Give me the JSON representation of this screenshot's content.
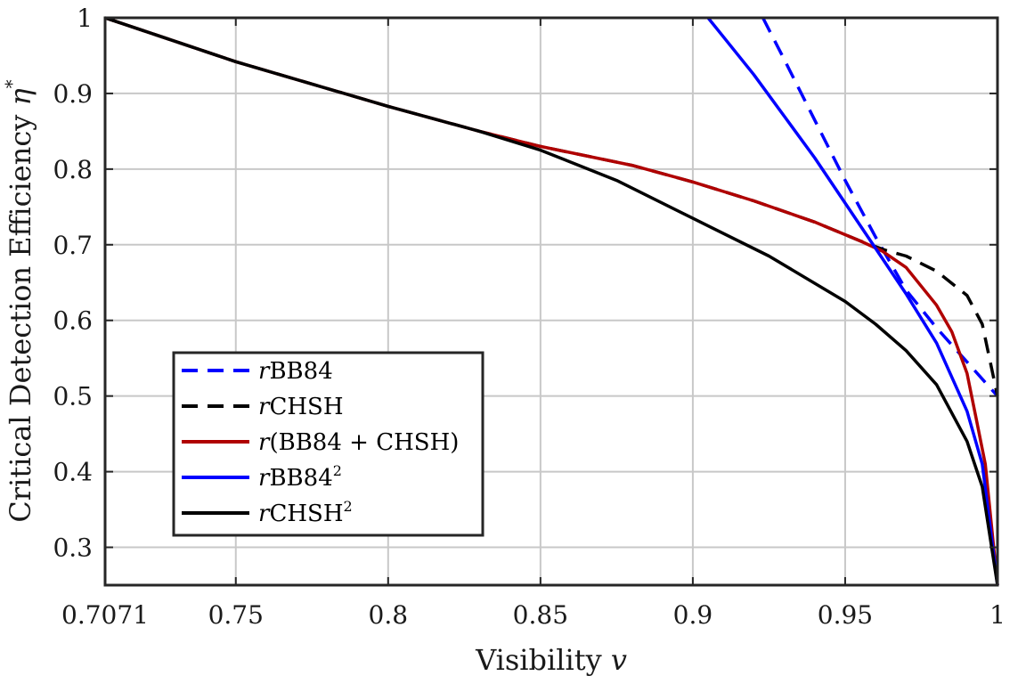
{
  "chart_data": {
    "type": "line",
    "xlabel_main": "Visibility ",
    "xlabel_var": "v",
    "ylabel_main": "Critical Detection Efficiency ",
    "ylabel_var": "η",
    "ylabel_sup": "*",
    "xlim": [
      0.7071,
      1.0
    ],
    "ylim": [
      0.25,
      1.0
    ],
    "x_ticks": [
      0.7071,
      0.75,
      0.8,
      0.85,
      0.9,
      0.95,
      1.0
    ],
    "x_tick_labels": [
      "0.7071",
      "0.75",
      "0.8",
      "0.85",
      "0.9",
      "0.95",
      "1"
    ],
    "y_ticks": [
      0.3,
      0.4,
      0.5,
      0.6,
      0.7,
      0.8,
      0.9,
      1.0
    ],
    "y_tick_labels": [
      "0.3",
      "0.4",
      "0.5",
      "0.6",
      "0.7",
      "0.8",
      "0.9",
      "1"
    ],
    "grid": true,
    "legend_position": "lower-left",
    "series": [
      {
        "name": "rBB84",
        "label_prefix": "r",
        "label_main": "BB84",
        "label_sup": "",
        "color": "#0000ff",
        "dashed": true,
        "x": [
          0.923,
          0.93,
          0.94,
          0.95,
          0.96,
          0.97,
          0.98,
          0.99,
          1.0
        ],
        "y": [
          1.0,
          0.945,
          0.865,
          0.785,
          0.71,
          0.64,
          0.59,
          0.545,
          0.5
        ]
      },
      {
        "name": "rCHSH",
        "label_prefix": "r",
        "label_main": "CHSH",
        "label_sup": "",
        "color": "#000000",
        "dashed": true,
        "x": [
          0.7071,
          0.75,
          0.8,
          0.83,
          0.85,
          0.88,
          0.9,
          0.92,
          0.94,
          0.955,
          0.963,
          0.97,
          0.98,
          0.99,
          0.995,
          1.0
        ],
        "y": [
          1.0,
          0.942,
          0.883,
          0.85,
          0.83,
          0.805,
          0.783,
          0.758,
          0.73,
          0.705,
          0.693,
          0.685,
          0.665,
          0.633,
          0.595,
          0.5
        ]
      },
      {
        "name": "r(BB84 + CHSH)",
        "label_prefix": "r",
        "label_main": "(BB84 + CHSH)",
        "label_sup": "",
        "color": "#b00000",
        "dashed": false,
        "x": [
          0.7071,
          0.75,
          0.8,
          0.83,
          0.85,
          0.88,
          0.9,
          0.92,
          0.94,
          0.955,
          0.962,
          0.97,
          0.98,
          0.985,
          0.99,
          0.993,
          0.996,
          1.0
        ],
        "y": [
          1.0,
          0.942,
          0.883,
          0.85,
          0.83,
          0.805,
          0.783,
          0.758,
          0.73,
          0.705,
          0.692,
          0.67,
          0.62,
          0.585,
          0.53,
          0.47,
          0.41,
          0.25
        ]
      },
      {
        "name": "rBB84²",
        "label_prefix": "r",
        "label_main": "BB84",
        "label_sup": "2",
        "color": "#0000ff",
        "dashed": false,
        "x": [
          0.905,
          0.91,
          0.92,
          0.93,
          0.94,
          0.95,
          0.96,
          0.97,
          0.98,
          0.99,
          0.995,
          1.0
        ],
        "y": [
          1.0,
          0.975,
          0.925,
          0.87,
          0.815,
          0.755,
          0.695,
          0.635,
          0.57,
          0.48,
          0.41,
          0.25
        ]
      },
      {
        "name": "rCHSH²",
        "label_prefix": "r",
        "label_main": "CHSH",
        "label_sup": "2",
        "color": "#000000",
        "dashed": false,
        "x": [
          0.7071,
          0.75,
          0.8,
          0.83,
          0.85,
          0.875,
          0.9,
          0.925,
          0.95,
          0.96,
          0.97,
          0.98,
          0.99,
          0.995,
          1.0
        ],
        "y": [
          1.0,
          0.942,
          0.883,
          0.85,
          0.825,
          0.785,
          0.735,
          0.685,
          0.625,
          0.595,
          0.56,
          0.515,
          0.44,
          0.38,
          0.25
        ]
      }
    ]
  }
}
